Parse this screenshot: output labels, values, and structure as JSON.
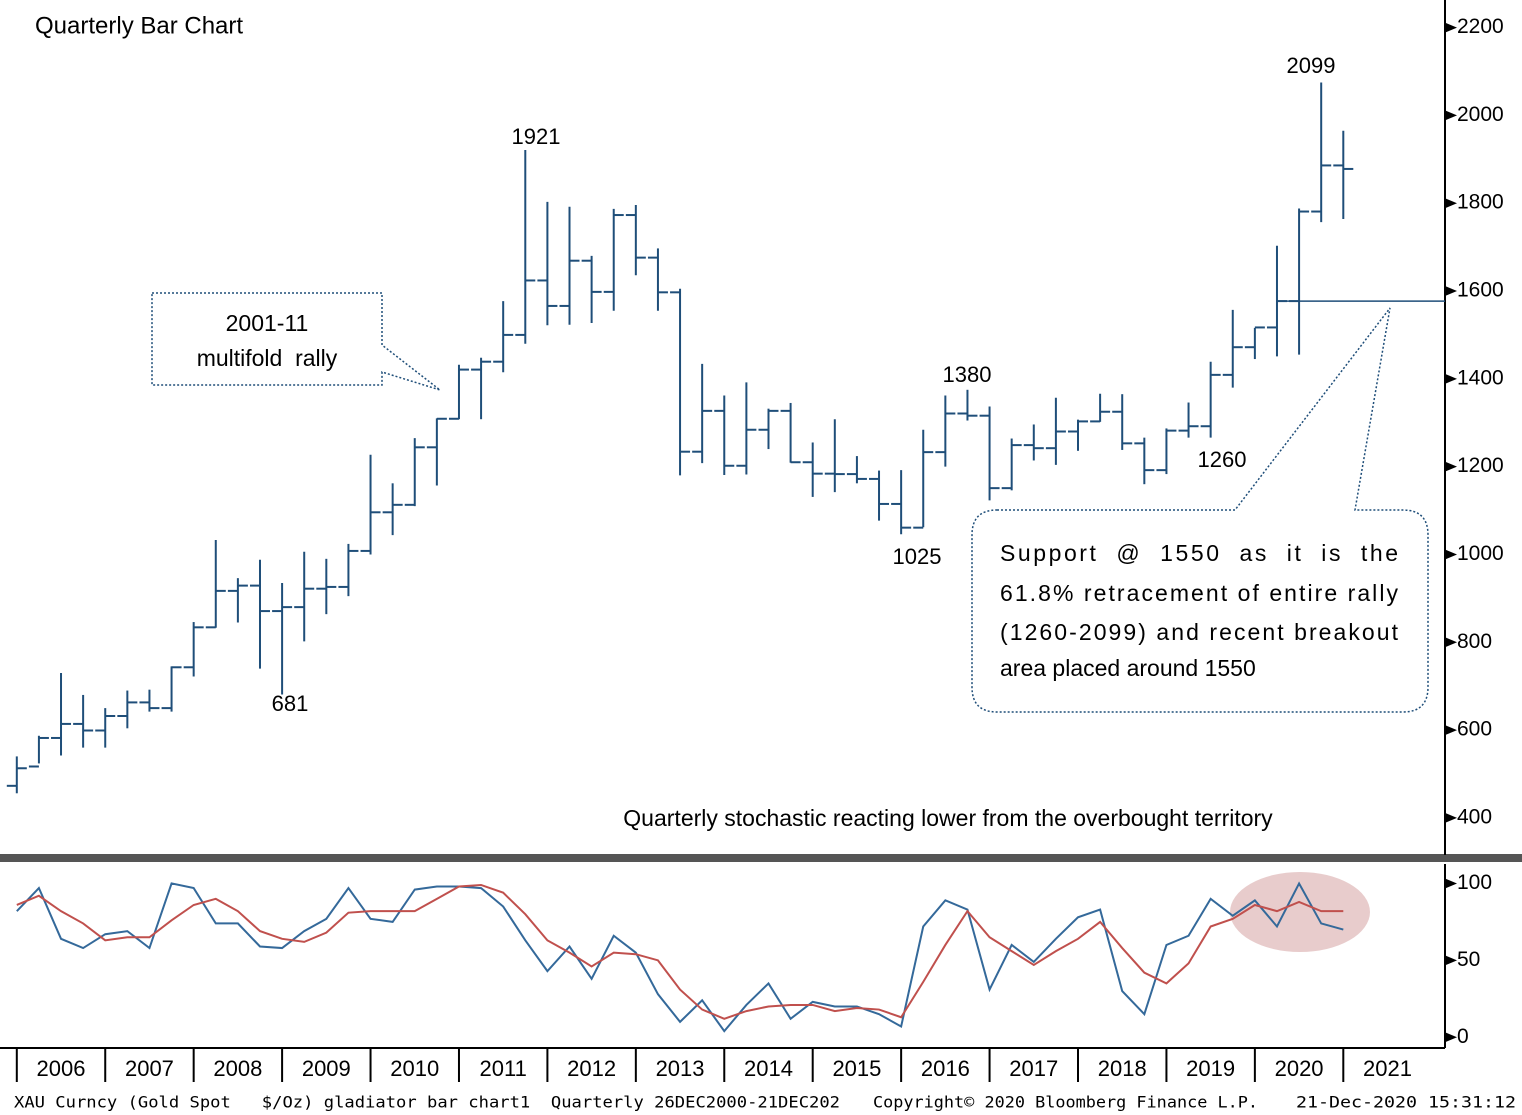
{
  "chart_data": [
    {
      "type": "ohlc",
      "title": "Quarterly Bar Chart",
      "color": "#1f4e79",
      "x": [
        2006,
        2006.25,
        2006.5,
        2006.75,
        2007,
        2007.25,
        2007.5,
        2007.75,
        2008,
        2008.25,
        2008.5,
        2008.75,
        2009,
        2009.25,
        2009.5,
        2009.75,
        2010,
        2010.25,
        2010.5,
        2010.75,
        2011,
        2011.25,
        2011.5,
        2011.75,
        2012,
        2012.25,
        2012.5,
        2012.75,
        2013,
        2013.25,
        2013.5,
        2013.75,
        2014,
        2014.25,
        2014.5,
        2014.75,
        2015,
        2015.25,
        2015.5,
        2015.75,
        2016,
        2016.25,
        2016.5,
        2016.75,
        2017,
        2017.25,
        2017.5,
        2017.75,
        2018,
        2018.25,
        2018.5,
        2018.75,
        2019,
        2019.25,
        2019.5,
        2019.75,
        2020,
        2020.25,
        2020.5,
        2020.75,
        2021
      ],
      "open": [
        473,
        517,
        582,
        614,
        599,
        632,
        663,
        650,
        743,
        834,
        917,
        929,
        871,
        880,
        922,
        926,
        1008,
        1096,
        1113,
        1244,
        1309,
        1421,
        1439,
        1500,
        1624,
        1566,
        1669,
        1598,
        1773,
        1676,
        1597,
        1234,
        1327,
        1202,
        1284,
        1327,
        1210,
        1184,
        1183,
        1172,
        1115,
        1061,
        1233,
        1321,
        1316,
        1151,
        1249,
        1242,
        1280,
        1303,
        1325,
        1253,
        1192,
        1282,
        1292,
        1409,
        1472,
        1517,
        1577,
        1781,
        1886
      ],
      "high": [
        540,
        587,
        730,
        680,
        650,
        690,
        692,
        745,
        846,
        1033,
        946,
        988,
        935,
        1006,
        990,
        1024,
        1227,
        1162,
        1265,
        1310,
        1432,
        1448,
        1577,
        1921,
        1803,
        1792,
        1680,
        1787,
        1796,
        1697,
        1605,
        1434,
        1362,
        1392,
        1332,
        1345,
        1255,
        1308,
        1224,
        1191,
        1192,
        1284,
        1362,
        1375,
        1337,
        1264,
        1296,
        1357,
        1307,
        1366,
        1365,
        1266,
        1287,
        1346,
        1439,
        1557,
        1516,
        1703,
        1788,
        2075,
        1965
      ],
      "low": [
        456,
        524,
        542,
        560,
        560,
        604,
        642,
        642,
        722,
        833,
        845,
        740,
        681,
        802,
        864,
        905,
        1000,
        1044,
        1110,
        1157,
        1308,
        1308,
        1415,
        1480,
        1522,
        1523,
        1527,
        1555,
        1636,
        1555,
        1180,
        1208,
        1181,
        1182,
        1240,
        1209,
        1131,
        1142,
        1162,
        1077,
        1046,
        1062,
        1200,
        1305,
        1123,
        1146,
        1214,
        1204,
        1236,
        1302,
        1238,
        1160,
        1183,
        1266,
        1266,
        1380,
        1445,
        1451,
        1455,
        1757,
        1764
      ],
      "close": [
        513,
        582,
        614,
        599,
        632,
        663,
        650,
        743,
        834,
        917,
        929,
        871,
        880,
        922,
        926,
        1008,
        1096,
        1113,
        1244,
        1309,
        1421,
        1439,
        1500,
        1624,
        1566,
        1669,
        1598,
        1773,
        1676,
        1597,
        1234,
        1327,
        1202,
        1284,
        1327,
        1210,
        1184,
        1183,
        1172,
        1115,
        1061,
        1233,
        1321,
        1316,
        1151,
        1249,
        1242,
        1280,
        1303,
        1325,
        1253,
        1192,
        1282,
        1292,
        1409,
        1472,
        1517,
        1577,
        1781,
        1886,
        1878
      ],
      "xlim": [
        2005.81,
        2022.15
      ],
      "ylim": [
        320,
        2240
      ],
      "yticks": [
        400,
        600,
        800,
        1000,
        1200,
        1400,
        1600,
        1800,
        2000,
        2200
      ],
      "support_level": 1577,
      "annotations": [
        "1921",
        "681",
        "1025",
        "1380",
        "1260",
        "2099",
        "2001-11",
        "multifold  rally",
        "Quarterly stochastic reacting lower from the overbought territory"
      ],
      "callout": [
        "Support  @  1550  as  it  is  the",
        "61.8% retracement of entire rally",
        "(1260-2099) and recent breakout",
        "area placed around 1550"
      ]
    },
    {
      "type": "line",
      "x": [
        2006,
        2006.25,
        2006.5,
        2006.75,
        2007,
        2007.25,
        2007.5,
        2007.75,
        2008,
        2008.25,
        2008.5,
        2008.75,
        2009,
        2009.25,
        2009.5,
        2009.75,
        2010,
        2010.25,
        2010.5,
        2010.75,
        2011,
        2011.25,
        2011.5,
        2011.75,
        2012,
        2012.25,
        2012.5,
        2012.75,
        2013,
        2013.25,
        2013.5,
        2013.75,
        2014,
        2014.25,
        2014.5,
        2014.75,
        2015,
        2015.25,
        2015.5,
        2015.75,
        2016,
        2016.25,
        2016.5,
        2016.75,
        2017,
        2017.25,
        2017.5,
        2017.75,
        2018,
        2018.25,
        2018.5,
        2018.75,
        2019,
        2019.25,
        2019.5,
        2019.75,
        2020,
        2020.25,
        2020.5,
        2020.75,
        2021
      ],
      "series": [
        {
          "color": "#34699a",
          "values": [
            82,
            97,
            64,
            58,
            67,
            69,
            58,
            100,
            97,
            74,
            74,
            59,
            58,
            69,
            77,
            97,
            77,
            75,
            96,
            98,
            98,
            97,
            85,
            63,
            43,
            59,
            38,
            66,
            55,
            28,
            10,
            24,
            4,
            21,
            35,
            12,
            23,
            20,
            20,
            15,
            7,
            72,
            89,
            83,
            31,
            60,
            49,
            64,
            78,
            83,
            30,
            15,
            60,
            66,
            90,
            79,
            89,
            72,
            100,
            74,
            70
          ]
        },
        {
          "color": "#c0504d",
          "values": [
            86,
            92,
            82,
            74,
            63,
            65,
            65,
            76,
            86,
            90,
            82,
            69,
            64,
            62,
            68,
            81,
            82,
            82,
            82,
            90,
            98,
            99,
            94,
            80,
            63,
            55,
            46,
            55,
            54,
            50,
            31,
            18,
            12,
            17,
            20,
            21,
            21,
            17,
            19,
            18,
            13,
            36,
            60,
            82,
            65,
            56,
            47,
            56,
            64,
            75,
            58,
            42,
            35,
            48,
            72,
            77,
            86,
            82,
            88,
            82,
            82
          ]
        }
      ],
      "xlim": [
        2005.81,
        2022.15
      ],
      "ylim": [
        -7,
        112
      ],
      "yticks": [
        0,
        50,
        100
      ],
      "xticks": [
        2006,
        2007,
        2008,
        2009,
        2010,
        2011,
        2012,
        2013,
        2014,
        2015,
        2016,
        2017,
        2018,
        2019,
        2020,
        2021
      ]
    }
  ],
  "footer": [
    "XAU Curncy (Gold Spot   $/Oz) gladiator bar chart1  Quarterly 26DEC2000-21DEC202",
    "Copyright© 2020 Bloomberg Finance L.P.",
    "21-Dec-2020 15:31:12"
  ]
}
